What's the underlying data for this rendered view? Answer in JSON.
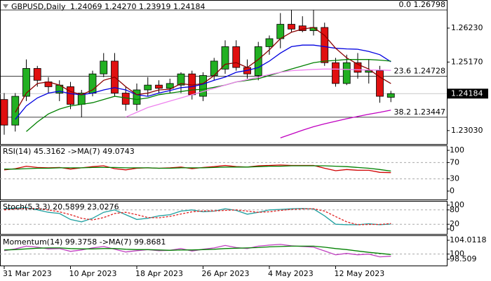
{
  "chart_data": [
    {
      "type": "candlestick",
      "title": "GBPUSD,Daily",
      "ohlc_text": "1.24069 1.24270 1.23919 1.24184",
      "categories": [
        "31 Mar 2023",
        null,
        null,
        null,
        null,
        null,
        "10 Apr 2023",
        null,
        null,
        null,
        null,
        null,
        "18 Apr 2023",
        null,
        null,
        null,
        null,
        null,
        "26 Apr 2023",
        null,
        null,
        null,
        null,
        null,
        "4 May 2023",
        null,
        null,
        null,
        null,
        null,
        "12 May 2023",
        null,
        null,
        null,
        null,
        null
      ],
      "open": [
        1.24,
        1.232,
        1.241,
        1.2497,
        1.2455,
        1.242,
        1.244,
        1.2385,
        1.242,
        1.248,
        1.252,
        1.242,
        1.2385,
        1.243,
        1.2445,
        1.2435,
        1.2445,
        1.248,
        1.241,
        1.2475,
        1.2495,
        1.2565,
        1.25,
        1.2475,
        1.2565,
        1.259,
        1.2635,
        1.263,
        1.2615,
        1.2625,
        1.2515,
        1.245,
        1.2515,
        1.2485,
        1.249,
        1.24069
      ],
      "high": [
        1.242,
        1.242,
        1.2525,
        1.2505,
        1.247,
        1.246,
        1.2455,
        1.243,
        1.249,
        1.2545,
        1.2545,
        1.244,
        1.245,
        1.247,
        1.246,
        1.2465,
        1.2485,
        1.249,
        1.2485,
        1.253,
        1.2585,
        1.2585,
        1.2525,
        1.258,
        1.26,
        1.267,
        1.268,
        1.266,
        1.268,
        1.264,
        1.253,
        1.254,
        1.2545,
        1.2525,
        1.2505,
        1.2427
      ],
      "low": [
        1.229,
        1.23,
        1.2395,
        1.244,
        1.242,
        1.2395,
        1.237,
        1.2345,
        1.241,
        1.247,
        1.241,
        1.2365,
        1.2365,
        1.241,
        1.242,
        1.242,
        1.242,
        1.24,
        1.2395,
        1.246,
        1.248,
        1.249,
        1.2465,
        1.246,
        1.254,
        1.256,
        1.261,
        1.261,
        1.26,
        1.2505,
        1.244,
        1.2445,
        1.2465,
        1.245,
        1.239,
        1.23919
      ],
      "close": [
        1.232,
        1.241,
        1.2497,
        1.246,
        1.244,
        1.2445,
        1.2385,
        1.242,
        1.248,
        1.252,
        1.242,
        1.2385,
        1.243,
        1.2445,
        1.2435,
        1.245,
        1.248,
        1.2415,
        1.2475,
        1.252,
        1.2565,
        1.25,
        1.248,
        1.2565,
        1.259,
        1.2635,
        1.262,
        1.2615,
        1.2625,
        1.2515,
        1.245,
        1.2515,
        1.2485,
        1.249,
        1.241,
        1.24184
      ],
      "up_color": "#22b022",
      "down_color": "#e01010",
      "series": [
        {
          "color": "#0000e0",
          "values": [
            null,
            1.2338,
            1.238,
            1.2405,
            1.242,
            1.2426,
            1.2418,
            1.2415,
            1.242,
            1.243,
            1.2437,
            1.243,
            1.2415,
            1.241,
            1.242,
            1.2428,
            1.2437,
            1.244,
            1.2448,
            1.246,
            1.247,
            1.2485,
            1.2491,
            1.25,
            1.252,
            1.2545,
            1.2565,
            1.257,
            1.257,
            1.2565,
            1.256,
            1.2558,
            1.2557,
            1.255,
            1.254,
            1.2518
          ]
        },
        {
          "color": "#8b0000",
          "values": [
            null,
            1.236,
            1.242,
            1.245,
            1.2455,
            1.2445,
            1.2425,
            1.2415,
            1.243,
            1.246,
            1.247,
            1.244,
            1.2415,
            1.242,
            1.243,
            1.2432,
            1.245,
            1.2445,
            1.245,
            1.2475,
            1.251,
            1.2515,
            1.25,
            1.2525,
            1.2555,
            1.259,
            1.261,
            1.262,
            1.2625,
            1.26,
            1.256,
            1.253,
            1.251,
            1.2495,
            1.247,
            1.245
          ]
        },
        {
          "color": "#008000",
          "values": [
            null,
            null,
            1.23,
            1.233,
            1.2355,
            1.237,
            1.238,
            1.2385,
            1.239,
            1.24,
            1.241,
            1.2405,
            1.24,
            1.2405,
            1.2415,
            1.242,
            1.2425,
            1.243,
            1.2432,
            1.2438,
            1.2445,
            1.2455,
            1.246,
            1.2465,
            1.2475,
            1.2485,
            1.2495,
            1.2505,
            1.2515,
            1.252,
            1.2522,
            1.2525,
            1.2525,
            1.2525,
            1.2523,
            1.252
          ]
        },
        {
          "color": "#ee82ee",
          "values": [
            null,
            null,
            null,
            null,
            null,
            null,
            null,
            null,
            null,
            null,
            null,
            1.2345,
            1.236,
            1.2375,
            1.2385,
            1.2395,
            1.2405,
            1.2415,
            1.2425,
            1.2435,
            1.2445,
            1.2455,
            1.2462,
            1.247,
            1.2478,
            1.2485,
            1.249,
            1.2492,
            1.2494,
            1.2495,
            1.2495,
            1.2494,
            1.2493,
            1.2492,
            1.2492,
            1.2491
          ]
        },
        {
          "color": "#c000c0",
          "values": [
            null,
            null,
            null,
            null,
            null,
            null,
            null,
            null,
            null,
            null,
            null,
            null,
            null,
            null,
            null,
            null,
            null,
            null,
            null,
            null,
            null,
            null,
            null,
            null,
            null,
            1.228,
            1.2292,
            1.2304,
            1.2315,
            1.2324,
            1.2332,
            1.234,
            1.2347,
            1.2354,
            1.236,
            1.2367
          ]
        }
      ],
      "levels": [
        {
          "value": 1.26798,
          "label": "0.0 1.26798"
        },
        {
          "value": 1.24728,
          "label": "23.6 1.24728"
        },
        {
          "value": 1.23447,
          "label": "38.2 1.23447"
        }
      ],
      "last_price": 1.24184,
      "ylim": [
        1.2261,
        1.2702
      ],
      "yticks": [
        {
          "value": 1.2623,
          "label": "1.26230"
        },
        {
          "value": 1.2517,
          "label": "1.25170"
        },
        {
          "value": 1.2303,
          "label": "1.23030"
        }
      ]
    },
    {
      "type": "line",
      "title": "RSI(14) 45.3162 ->MA(7) 49.0743",
      "series": [
        {
          "color": "#d00000",
          "values": [
            52,
            55,
            61,
            58,
            57,
            58,
            54,
            57,
            60,
            62,
            55,
            52,
            56,
            57,
            56,
            57,
            59,
            55,
            58,
            60,
            63,
            60,
            59,
            62,
            63,
            64,
            63,
            63,
            63,
            56,
            50,
            53,
            51,
            51,
            46,
            45.3162
          ]
        },
        {
          "color": "#008000",
          "values": [
            54,
            54,
            55,
            56,
            56,
            57,
            57,
            57,
            58,
            58,
            58,
            57,
            57,
            57,
            56,
            56,
            57,
            57,
            57,
            58,
            59,
            59,
            59,
            60,
            61,
            61,
            62,
            62,
            62,
            62,
            61,
            60,
            58,
            56,
            53,
            49.0743
          ]
        }
      ],
      "levels": [
        70,
        30
      ],
      "ylim": [
        0,
        100
      ],
      "yticks": [
        100,
        70,
        30,
        0
      ]
    },
    {
      "type": "line",
      "title": "Stoch(5,3,3) 20.5899 23.0276",
      "series": [
        {
          "color": "#20a0a0",
          "values": [
            85,
            88,
            90,
            80,
            70,
            65,
            40,
            30,
            45,
            70,
            80,
            60,
            40,
            45,
            55,
            60,
            75,
            80,
            72,
            75,
            85,
            78,
            62,
            70,
            80,
            82,
            85,
            86,
            84,
            55,
            20,
            18,
            18,
            22,
            18,
            20.5899
          ]
        },
        {
          "color": "#e02020",
          "dashed": true,
          "values": [
            80,
            84,
            86,
            85,
            80,
            72,
            60,
            45,
            38,
            48,
            65,
            70,
            60,
            48,
            47,
            53,
            63,
            72,
            76,
            76,
            78,
            80,
            75,
            70,
            72,
            78,
            82,
            84,
            85,
            75,
            52,
            30,
            18,
            19,
            19,
            23.0276
          ]
        }
      ],
      "levels": [
        80,
        20
      ],
      "ylim": [
        0,
        100
      ],
      "yticks": [
        100,
        80,
        20,
        0
      ]
    },
    {
      "type": "line",
      "title": "Momentum(14) 99.3758 ->MA(7) 99.8681",
      "series": [
        {
          "color": "#c040c0",
          "values": [
            101.0,
            101.5,
            102.3,
            102.0,
            101.5,
            101.6,
            100.8,
            101.2,
            101.8,
            102.2,
            101.4,
            100.6,
            101.0,
            101.3,
            101.0,
            101.1,
            101.6,
            100.9,
            101.4,
            101.8,
            102.5,
            101.9,
            101.6,
            102.3,
            102.6,
            102.8,
            102.4,
            102.2,
            102.0,
            100.9,
            99.8,
            100.2,
            99.8,
            100.0,
            99.2,
            99.3758
          ]
        },
        {
          "color": "#008000",
          "values": [
            101.2,
            101.3,
            101.5,
            101.7,
            101.8,
            101.8,
            101.6,
            101.5,
            101.5,
            101.6,
            101.6,
            101.4,
            101.3,
            101.3,
            101.2,
            101.1,
            101.2,
            101.2,
            101.3,
            101.4,
            101.6,
            101.7,
            101.8,
            101.9,
            102.1,
            102.2,
            102.3,
            102.3,
            102.3,
            102.0,
            101.6,
            101.3,
            100.9,
            100.5,
            100.2,
            99.8681
          ]
        }
      ],
      "levels": [
        100
      ],
      "ylim": [
        98.509,
        104.0118
      ],
      "yticks": [
        104.0118,
        100,
        98.509
      ]
    }
  ]
}
